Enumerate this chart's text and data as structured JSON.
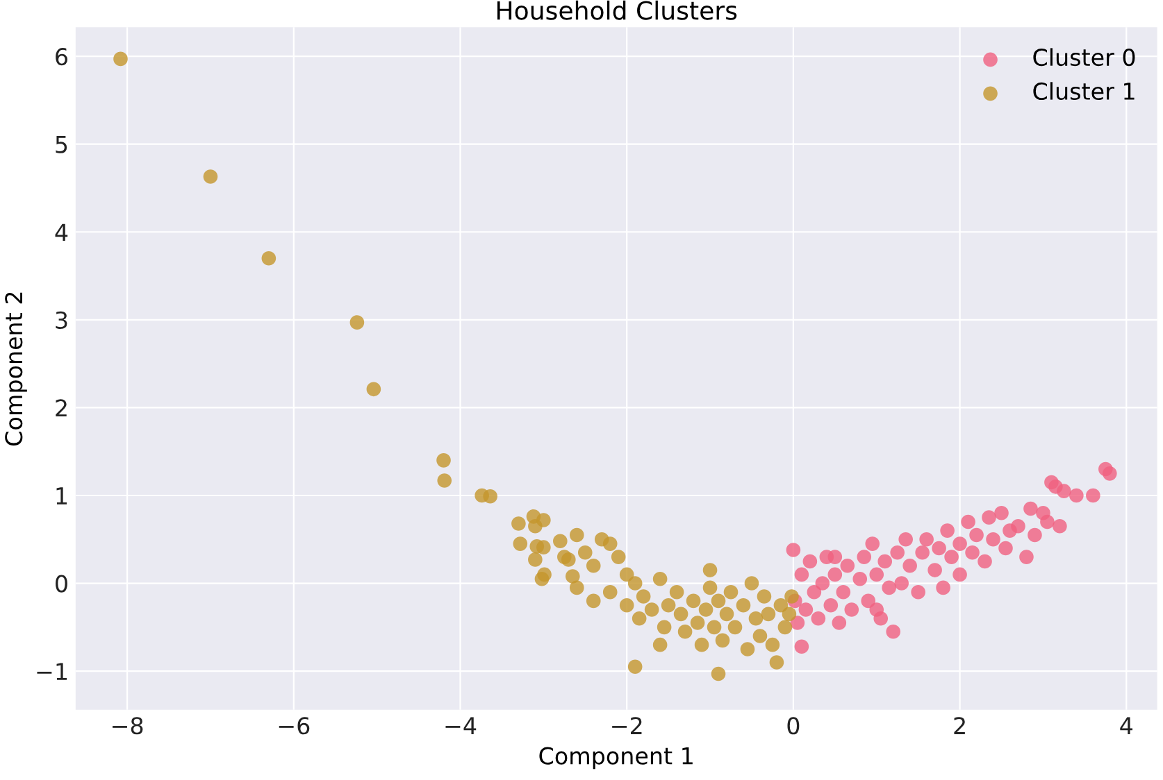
{
  "chart_data": {
    "type": "scatter",
    "title": "Household Clusters",
    "xlabel": "Component 1",
    "ylabel": "Component 2",
    "xlim": [
      -8.62,
      4.37
    ],
    "ylim": [
      -1.44,
      6.33
    ],
    "xticks": [
      {
        "value": -8,
        "label": "−8"
      },
      {
        "value": -6,
        "label": "−6"
      },
      {
        "value": -4,
        "label": "−4"
      },
      {
        "value": -2,
        "label": "−2"
      },
      0,
      2,
      4
    ],
    "yticks": [
      {
        "value": -1,
        "label": "−1"
      },
      0,
      1,
      2,
      3,
      4,
      5,
      6
    ],
    "grid": true,
    "legend": "top right",
    "marker": "circle",
    "series": [
      {
        "name": "Cluster 0",
        "color": "#f06080",
        "x": [
          0.0,
          0.02,
          0.05,
          0.1,
          0.15,
          0.1,
          0.2,
          0.25,
          0.3,
          0.35,
          0.4,
          0.45,
          0.5,
          0.55,
          0.6,
          0.65,
          0.7,
          0.8,
          0.85,
          0.9,
          0.95,
          1.0,
          1.05,
          1.1,
          1.15,
          1.2,
          1.25,
          1.3,
          1.35,
          1.4,
          1.5,
          1.55,
          1.6,
          1.7,
          1.75,
          1.8,
          1.85,
          1.9,
          2.0,
          2.0,
          2.1,
          2.15,
          2.2,
          2.3,
          2.35,
          2.4,
          2.5,
          2.55,
          2.6,
          2.7,
          2.8,
          2.85,
          2.9,
          3.0,
          3.05,
          3.1,
          3.15,
          3.2,
          3.25,
          3.4,
          3.6,
          3.75,
          3.8,
          1.0,
          0.5
        ],
        "values": [
          0.38,
          -0.2,
          -0.45,
          0.1,
          -0.3,
          -0.72,
          0.25,
          -0.1,
          -0.4,
          0.0,
          0.3,
          -0.25,
          0.1,
          -0.45,
          -0.1,
          0.2,
          -0.3,
          0.05,
          0.3,
          -0.2,
          0.45,
          0.1,
          -0.4,
          0.25,
          -0.05,
          -0.55,
          0.35,
          0.0,
          0.5,
          0.2,
          -0.1,
          0.35,
          0.5,
          0.15,
          0.4,
          -0.05,
          0.6,
          0.3,
          0.45,
          0.1,
          0.7,
          0.35,
          0.55,
          0.25,
          0.75,
          0.5,
          0.8,
          0.4,
          0.6,
          0.65,
          0.3,
          0.85,
          0.55,
          0.8,
          0.7,
          1.15,
          1.1,
          0.65,
          1.05,
          1.0,
          1.0,
          1.3,
          1.25,
          -0.3,
          0.3
        ]
      },
      {
        "name": "Cluster 1",
        "color": "#c4962c",
        "x": [
          -8.08,
          -7.0,
          -6.3,
          -5.24,
          -5.04,
          -4.2,
          -4.19,
          -3.74,
          -3.64,
          -3.3,
          -3.28,
          -3.12,
          -3.1,
          -3.08,
          -3.0,
          -3.0,
          -3.1,
          -2.99,
          -3.02,
          -2.8,
          -2.75,
          -2.7,
          -2.6,
          -2.65,
          -2.5,
          -2.4,
          -2.3,
          -2.2,
          -2.4,
          -2.1,
          -2.0,
          -2.0,
          -1.9,
          -1.85,
          -1.9,
          -1.8,
          -1.7,
          -1.6,
          -1.55,
          -1.5,
          -1.4,
          -1.35,
          -1.3,
          -1.2,
          -1.15,
          -1.1,
          -1.05,
          -1.0,
          -0.95,
          -0.9,
          -0.9,
          -0.85,
          -0.8,
          -0.75,
          -0.7,
          -0.6,
          -0.55,
          -0.5,
          -0.45,
          -0.4,
          -0.35,
          -0.3,
          -0.25,
          -0.2,
          -0.15,
          -0.1,
          -0.05,
          -0.02,
          -1.6,
          -2.6,
          -2.2,
          -1.0
        ],
        "values": [
          5.97,
          4.63,
          3.7,
          2.97,
          2.21,
          1.4,
          1.17,
          1.0,
          0.99,
          0.68,
          0.45,
          0.76,
          0.65,
          0.42,
          0.72,
          0.41,
          0.27,
          0.1,
          0.05,
          0.48,
          0.3,
          0.27,
          0.55,
          0.08,
          0.35,
          0.2,
          0.5,
          -0.1,
          -0.2,
          0.3,
          0.1,
          -0.25,
          0.0,
          -0.4,
          -0.95,
          -0.15,
          -0.3,
          0.05,
          -0.5,
          -0.25,
          -0.1,
          -0.35,
          -0.55,
          -0.2,
          -0.45,
          -0.7,
          -0.3,
          -0.05,
          -0.5,
          -1.03,
          -0.2,
          -0.65,
          -0.35,
          -0.1,
          -0.5,
          -0.25,
          -0.75,
          0.0,
          -0.4,
          -0.6,
          -0.15,
          -0.35,
          -0.7,
          -0.9,
          -0.25,
          -0.5,
          -0.35,
          -0.15,
          -0.7,
          -0.05,
          0.45,
          0.15
        ]
      }
    ]
  }
}
